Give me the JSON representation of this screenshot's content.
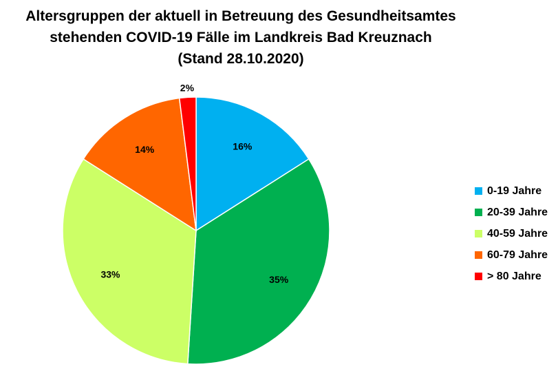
{
  "chart_data": {
    "type": "pie",
    "title": [
      "Altersgruppen der aktuell in Betreuung des Gesundheitsamtes",
      "stehenden COVID-19 Fälle im Landkreis Bad Kreuznach",
      "(Stand 28.10.2020)"
    ],
    "categories": [
      "0-19 Jahre",
      "20-39 Jahre",
      "40-59 Jahre",
      "60-79 Jahre",
      "> 80 Jahre"
    ],
    "values": [
      16,
      35,
      33,
      14,
      2
    ],
    "data_labels": [
      "16%",
      "35%",
      "33%",
      "14%",
      "2%"
    ],
    "colors": [
      "#00B0F0",
      "#00B050",
      "#CCFF66",
      "#FF6600",
      "#FF0000"
    ],
    "legend_position": "right",
    "start_angle": "top, clockwise"
  }
}
